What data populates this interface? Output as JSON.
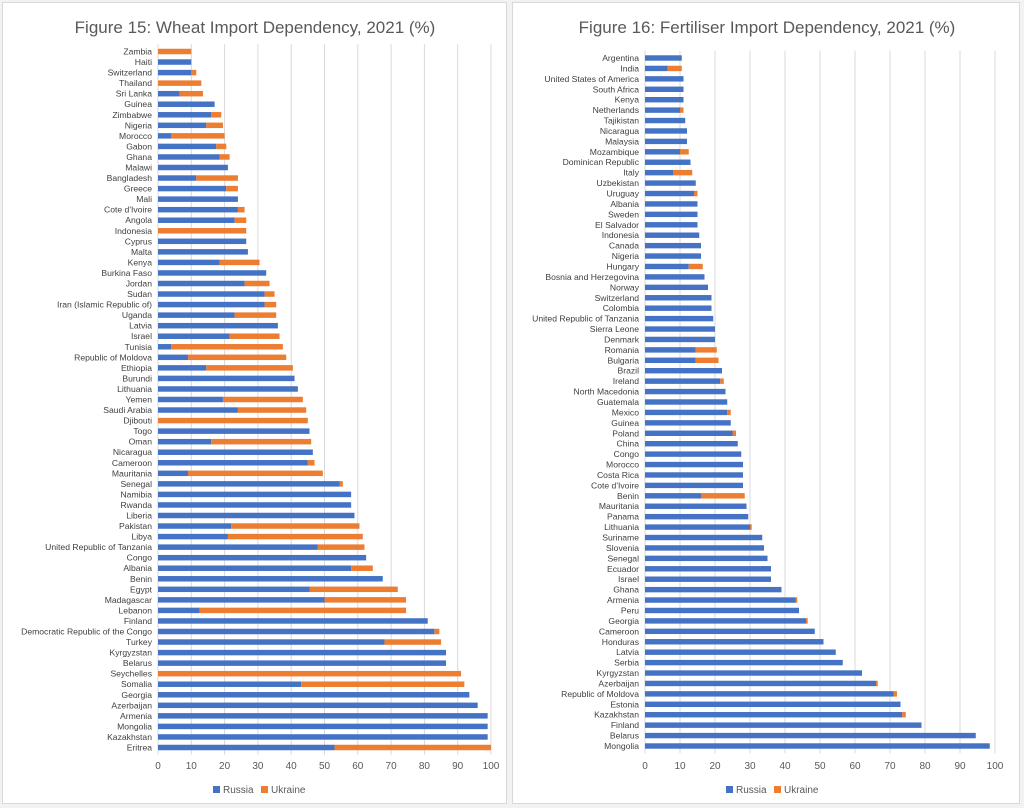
{
  "chart_data": [
    {
      "type": "bar",
      "orientation": "horizontal",
      "stacked": true,
      "title": "Figure 15: Wheat Import Dependency, 2021 (%)",
      "xlim": [
        0,
        100
      ],
      "xticks": [
        0,
        10,
        20,
        30,
        40,
        50,
        60,
        70,
        80,
        90,
        100
      ],
      "grid": true,
      "legend": "bottom",
      "colors": {
        "Russia": "#4472c4",
        "Ukraine": "#ed7d31"
      },
      "categories": [
        "Zambia",
        "Haiti",
        "Switzerland",
        "Thailand",
        "Sri Lanka",
        "Guinea",
        "Zimbabwe",
        "Nigeria",
        "Morocco",
        "Gabon",
        "Ghana",
        "Malawi",
        "Bangladesh",
        "Greece",
        "Mali",
        "Cote d'Ivoire",
        "Angola",
        "Indonesia",
        "Cyprus",
        "Malta",
        "Kenya",
        "Burkina Faso",
        "Jordan",
        "Sudan",
        "Iran (Islamic Republic of)",
        "Uganda",
        "Latvia",
        "Israel",
        "Tunisia",
        "Republic of Moldova",
        "Ethiopia",
        "Burundi",
        "Lithuania",
        "Yemen",
        "Saudi Arabia",
        "Djibouti",
        "Togo",
        "Oman",
        "Nicaragua",
        "Cameroon",
        "Mauritania",
        "Senegal",
        "Namibia",
        "Rwanda",
        "Liberia",
        "Pakistan",
        "Libya",
        "United Republic of Tanzania",
        "Congo",
        "Albania",
        "Benin",
        "Egypt",
        "Madagascar",
        "Lebanon",
        "Finland",
        "Democratic Republic of the Congo",
        "Turkey",
        "Kyrgyzstan",
        "Belarus",
        "Seychelles",
        "Somalia",
        "Georgia",
        "Azerbaijan",
        "Armenia",
        "Mongolia",
        "Kazakhstan",
        "Eritrea"
      ],
      "series": [
        {
          "name": "Russia",
          "values": [
            0,
            10,
            10,
            0,
            6.5,
            17,
            16,
            14.5,
            4,
            17.5,
            18.5,
            21,
            11.5,
            20.5,
            24,
            24,
            23,
            0,
            26.5,
            27,
            18.5,
            32.5,
            26,
            32,
            32,
            23,
            36,
            21.5,
            4,
            9,
            14.5,
            41,
            42,
            19.5,
            24,
            0,
            45.5,
            16,
            46.5,
            45,
            9,
            54.5,
            58,
            58,
            59,
            22,
            21,
            48,
            62.5,
            58,
            67.5,
            45.5,
            50,
            12.5,
            81,
            83,
            68,
            86.5,
            86.5,
            0,
            43,
            93.5,
            96,
            99,
            99,
            99,
            53
          ]
        },
        {
          "name": "Ukraine",
          "values": [
            10,
            0,
            1.5,
            13,
            7,
            0,
            3,
            5,
            16,
            3,
            3,
            0,
            12.5,
            3.5,
            0,
            2,
            3.5,
            26.5,
            0,
            0,
            12,
            0,
            7.5,
            3,
            3.5,
            12.5,
            0,
            15,
            33.5,
            29.5,
            26,
            0,
            0,
            24,
            20.5,
            45,
            0,
            30,
            0,
            2,
            40.5,
            1,
            0,
            0,
            0,
            38.5,
            40.5,
            14,
            0,
            6.5,
            0,
            26.5,
            24.5,
            62,
            0,
            1.5,
            17,
            0,
            0,
            91,
            49,
            0,
            0,
            0,
            0,
            0,
            47
          ]
        }
      ]
    },
    {
      "type": "bar",
      "orientation": "horizontal",
      "stacked": true,
      "title": "Figure 16: Fertiliser Import Dependency, 2021 (%)",
      "xlim": [
        0,
        100
      ],
      "xticks": [
        0,
        10,
        20,
        30,
        40,
        50,
        60,
        70,
        80,
        90,
        100
      ],
      "grid": true,
      "legend": "bottom",
      "colors": {
        "Russia": "#4472c4",
        "Ukraine": "#ed7d31"
      },
      "categories": [
        "Argentina",
        "India",
        "United States of America",
        "South Africa",
        "Kenya",
        "Netherlands",
        "Tajikistan",
        "Nicaragua",
        "Malaysia",
        "Mozambique",
        "Dominican Republic",
        "Italy",
        "Uzbekistan",
        "Uruguay",
        "Albania",
        "Sweden",
        "El Salvador",
        "Indonesia",
        "Canada",
        "Nigeria",
        "Hungary",
        "Bosnia and Herzegovina",
        "Norway",
        "Switzerland",
        "Colombia",
        "United Republic of Tanzania",
        "Sierra Leone",
        "Denmark",
        "Romania",
        "Bulgaria",
        "Brazil",
        "Ireland",
        "North Macedonia",
        "Guatemala",
        "Mexico",
        "Guinea",
        "Poland",
        "China",
        "Congo",
        "Morocco",
        "Costa Rica",
        "Cote d'Ivoire",
        "Benin",
        "Mauritania",
        "Panama",
        "Lithuania",
        "Suriname",
        "Slovenia",
        "Senegal",
        "Ecuador",
        "Israel",
        "Ghana",
        "Armenia",
        "Peru",
        "Georgia",
        "Cameroon",
        "Honduras",
        "Latvia",
        "Serbia",
        "Kyrgyzstan",
        "Azerbaijan",
        "Republic of Moldova",
        "Estonia",
        "Kazakhstan",
        "Finland",
        "Belarus",
        "Mongolia"
      ],
      "series": [
        {
          "name": "Russia",
          "values": [
            10.5,
            6.5,
            11,
            11,
            11,
            10,
            11.5,
            12,
            12,
            10,
            13,
            8,
            14.5,
            14,
            15,
            15,
            15,
            15.5,
            16,
            16,
            12.5,
            17,
            18,
            19,
            19,
            19.5,
            20,
            20,
            14.5,
            14.5,
            22,
            21.5,
            23,
            23.5,
            23.5,
            24.5,
            25,
            26.5,
            27.5,
            28,
            28,
            28,
            16,
            29,
            29.5,
            30,
            33.5,
            34,
            35,
            36,
            36,
            39,
            43,
            44,
            46,
            48.5,
            51,
            54.5,
            56.5,
            62,
            66,
            71,
            73,
            73.5,
            79,
            94.5,
            98.5
          ]
        },
        {
          "name": "Ukraine",
          "values": [
            0,
            4,
            0,
            0,
            0,
            1,
            0,
            0,
            0,
            2.5,
            0,
            5.5,
            0,
            1,
            0,
            0,
            0,
            0,
            0,
            0,
            4,
            0,
            0,
            0,
            0,
            0,
            0,
            0,
            6,
            6.5,
            0,
            1,
            0,
            0,
            1,
            0,
            1,
            0,
            0,
            0,
            0,
            0,
            12.5,
            0,
            0,
            0.5,
            0,
            0,
            0,
            0,
            0,
            0,
            0.5,
            0,
            0.5,
            0,
            0,
            0,
            0,
            0,
            0.5,
            1,
            0,
            1,
            0,
            0,
            0
          ]
        }
      ]
    }
  ],
  "legend_labels": {
    "russia": "Russia",
    "ukraine": "Ukraine"
  }
}
